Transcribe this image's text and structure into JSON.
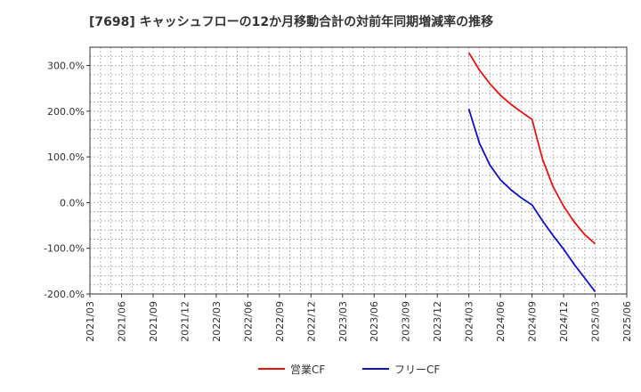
{
  "chart_data": {
    "type": "line",
    "title": "[7698]  キャッシュフローの12か月移動合計の対前年同期増減率の推移",
    "xlabel": "",
    "ylabel": "",
    "x_ticks": [
      "2021/03",
      "2021/06",
      "2021/09",
      "2021/12",
      "2022/03",
      "2022/06",
      "2022/09",
      "2022/12",
      "2023/03",
      "2023/06",
      "2023/09",
      "2023/12",
      "2024/03",
      "2024/06",
      "2024/09",
      "2024/12",
      "2025/03",
      "2025/06"
    ],
    "y_ticks": [
      300,
      200,
      100,
      0,
      -100,
      -200
    ],
    "y_tick_labels": [
      "300.0%",
      "200.0%",
      "100.0%",
      "0.0%",
      "-100.0%",
      "-200.0%"
    ],
    "ylim": [
      -200,
      340
    ],
    "grid": true,
    "legend_position": "bottom",
    "series": [
      {
        "name": "営業CF",
        "color": "#ee1111",
        "x": [
          "2024/03",
          "2024/04",
          "2024/05",
          "2024/06",
          "2024/07",
          "2024/08",
          "2024/09",
          "2024/10",
          "2024/11",
          "2024/12",
          "2025/01",
          "2025/02",
          "2025/03"
        ],
        "values": [
          328,
          290,
          260,
          235,
          215,
          198,
          182,
          95,
          35,
          -8,
          -42,
          -70,
          -90
        ]
      },
      {
        "name": "フリーCF",
        "color": "#1111cc",
        "x": [
          "2024/03",
          "2024/04",
          "2024/05",
          "2024/06",
          "2024/07",
          "2024/08",
          "2024/09",
          "2024/10",
          "2024/11",
          "2024/12",
          "2025/01",
          "2025/02",
          "2025/03"
        ],
        "values": [
          205,
          130,
          82,
          50,
          28,
          10,
          -5,
          -40,
          -72,
          -102,
          -135,
          -165,
          -195
        ]
      }
    ]
  }
}
